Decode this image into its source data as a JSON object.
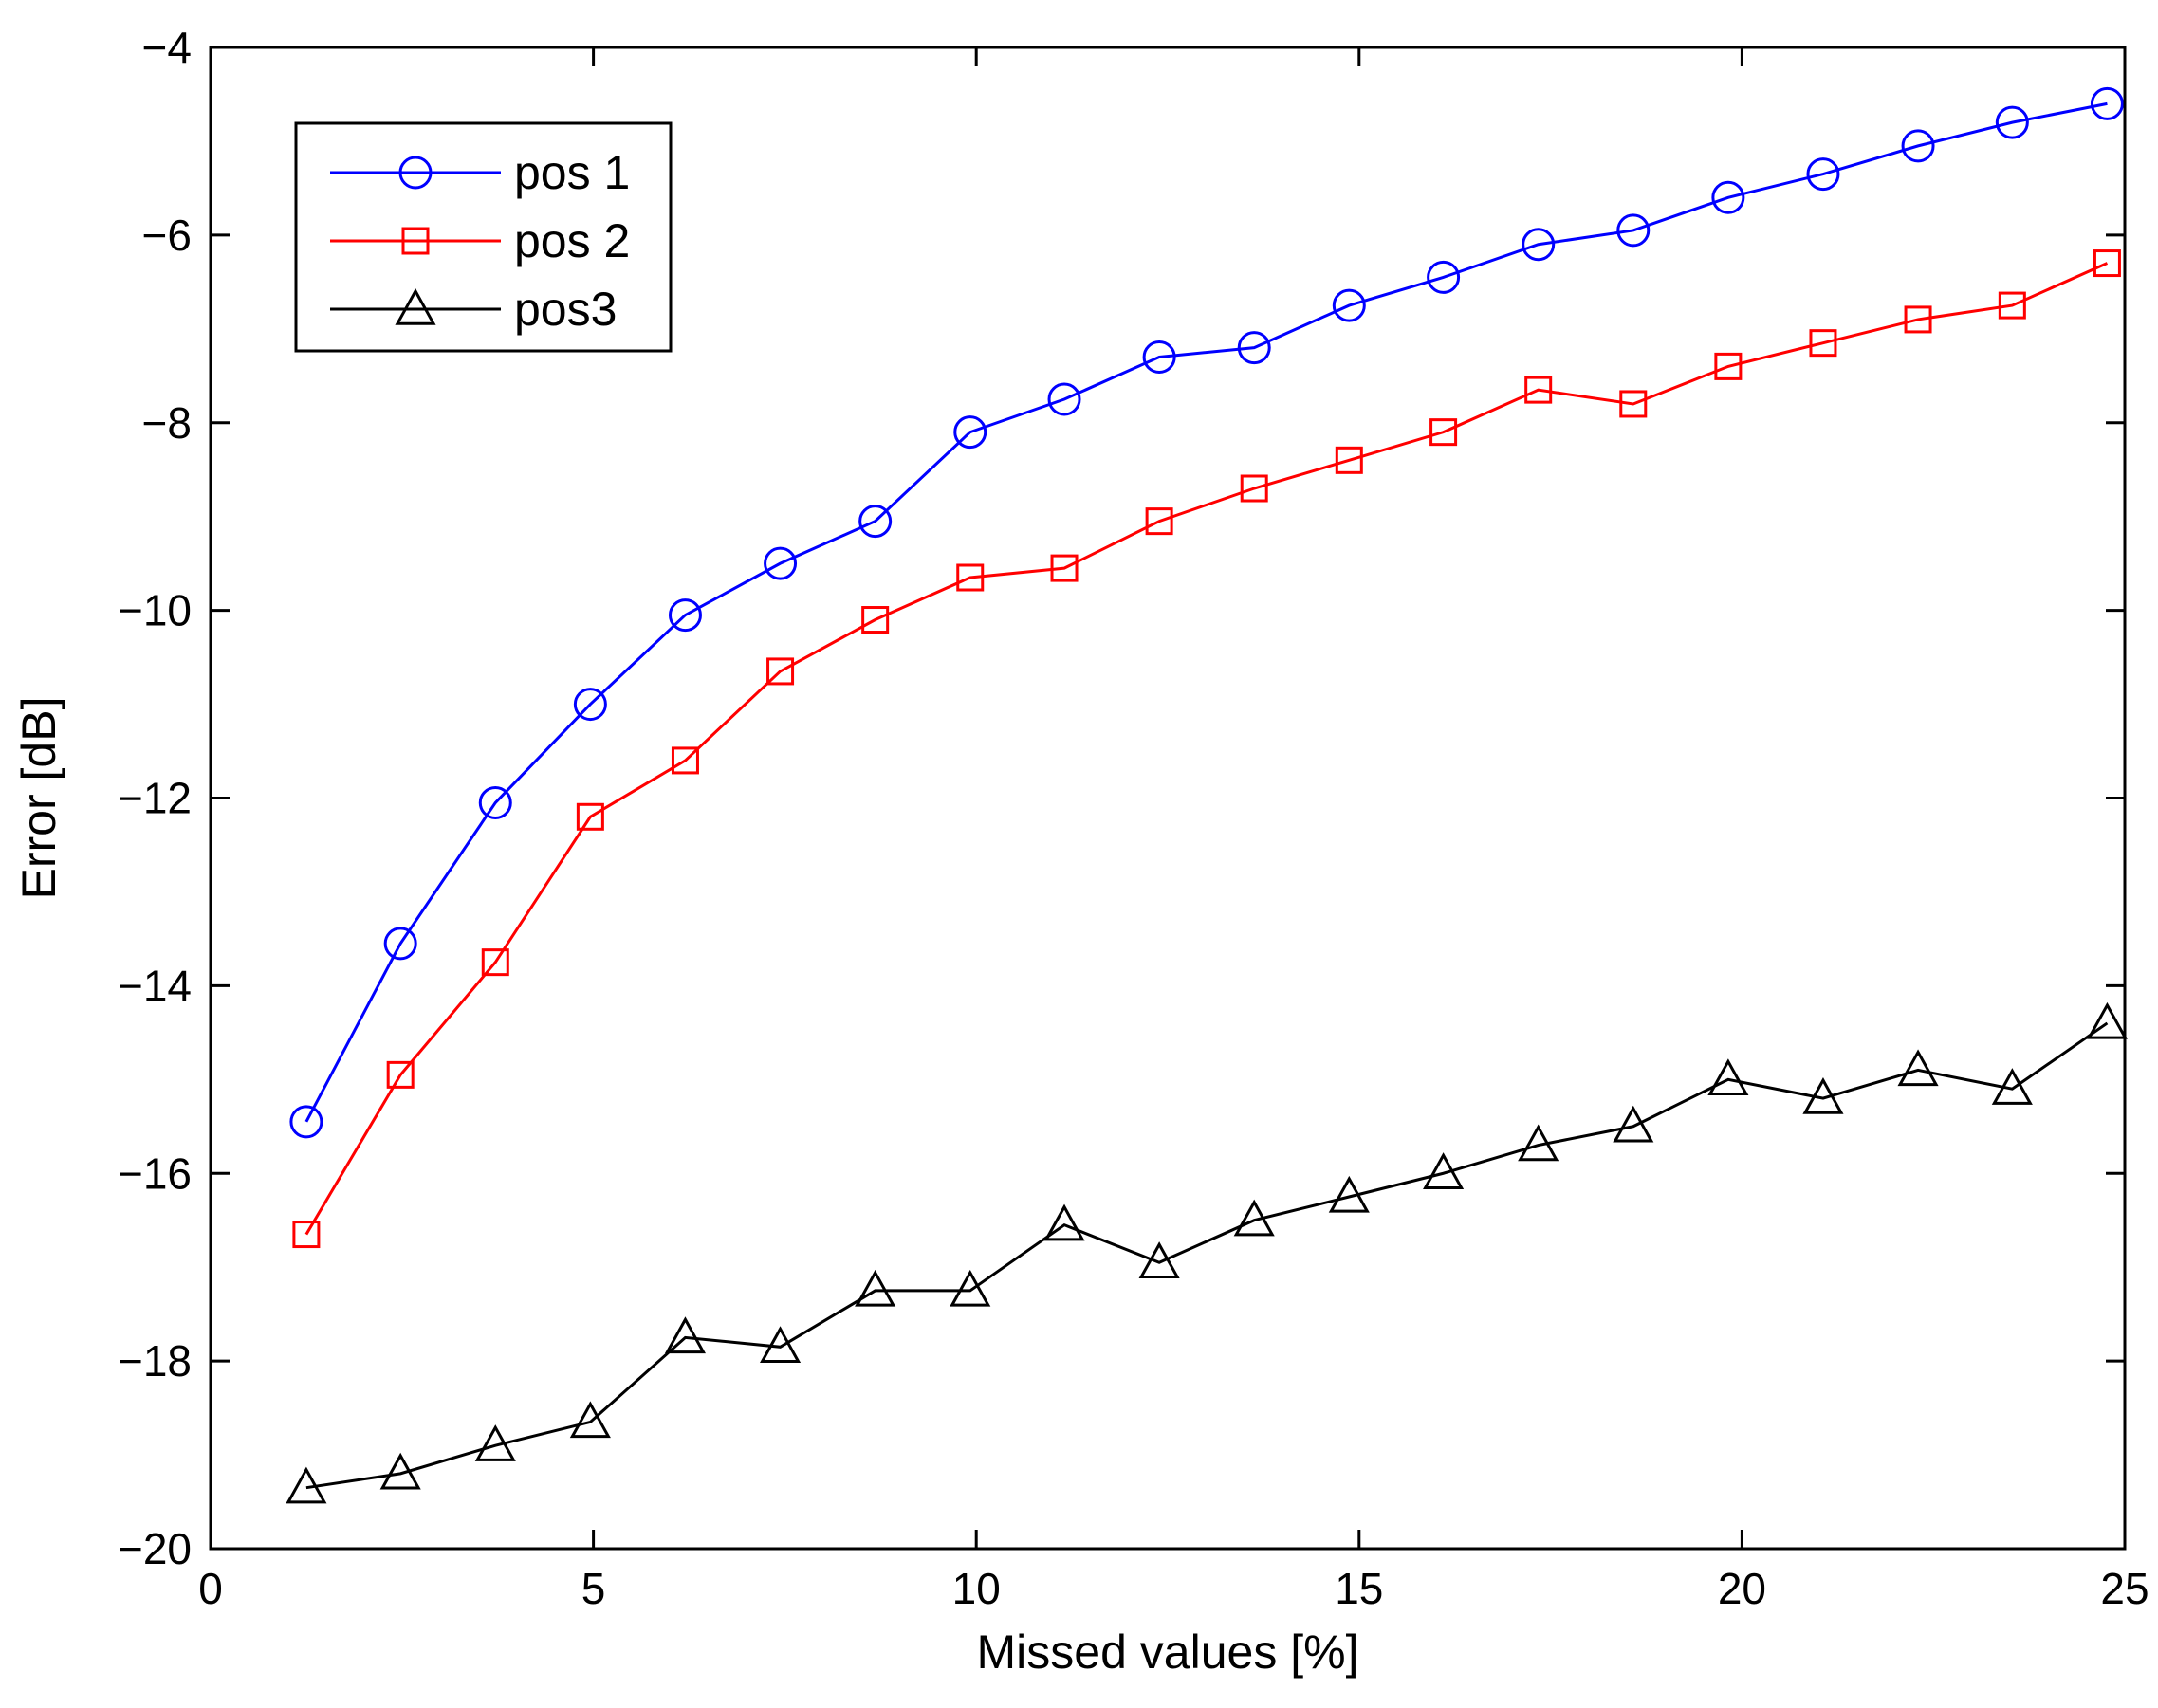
{
  "chart_data": {
    "type": "line",
    "title": "",
    "xlabel": "Missed values [%]",
    "ylabel": "Error [dB]",
    "xlim": [
      0,
      25
    ],
    "ylim": [
      -20,
      -4
    ],
    "xticks": [
      0,
      5,
      10,
      15,
      20,
      25
    ],
    "yticks": [
      -20,
      -18,
      -16,
      -14,
      -12,
      -10,
      -8,
      -6,
      -4
    ],
    "xtick_labels": [
      "0",
      "5",
      "10",
      "15",
      "20",
      "25"
    ],
    "ytick_labels": [
      "−20",
      "−18",
      "−16",
      "−14",
      "−12",
      "−10",
      "−8",
      "−6",
      "−4"
    ],
    "grid": false,
    "legend_position": "top-left",
    "x": [
      1.25,
      2.48,
      3.72,
      4.96,
      6.2,
      7.44,
      8.68,
      9.92,
      11.15,
      12.39,
      13.63,
      14.87,
      16.1,
      17.34,
      18.58,
      19.82,
      21.06,
      22.3,
      23.53,
      24.77
    ],
    "series": [
      {
        "name": "pos 1",
        "color": "#0000ff",
        "marker": "circle",
        "values": [
          -15.45,
          -13.55,
          -12.05,
          -11.0,
          -10.05,
          -9.5,
          -9.05,
          -8.1,
          -7.75,
          -7.3,
          -7.2,
          -6.75,
          -6.45,
          -6.1,
          -5.95,
          -5.6,
          -5.35,
          -5.05,
          -4.8,
          -4.6
        ]
      },
      {
        "name": "pos 2",
        "color": "#ff0000",
        "marker": "square",
        "values": [
          -16.65,
          -14.95,
          -13.75,
          -12.2,
          -11.6,
          -10.65,
          -10.1,
          -9.65,
          -9.55,
          -9.05,
          -8.7,
          -8.4,
          -8.1,
          -7.65,
          -7.8,
          -7.4,
          -7.15,
          -6.9,
          -6.75,
          -6.3
        ]
      },
      {
        "name": "pos3",
        "color": "#000000",
        "marker": "triangle",
        "values": [
          -19.35,
          -19.2,
          -18.9,
          -18.65,
          -17.75,
          -17.85,
          -17.25,
          -17.25,
          -16.55,
          -16.95,
          -16.5,
          -16.25,
          -16.0,
          -15.7,
          -15.5,
          -15.0,
          -15.2,
          -14.9,
          -15.1,
          -14.4
        ]
      }
    ]
  }
}
